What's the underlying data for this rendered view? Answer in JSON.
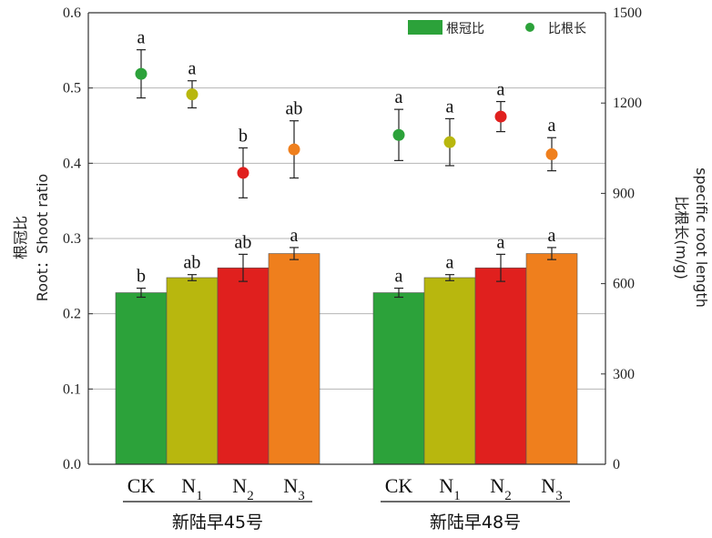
{
  "chart_data": {
    "type": "bar",
    "groups": [
      "新陆早45号",
      "新陆早48号"
    ],
    "categories": [
      {
        "base": "CK",
        "sub": ""
      },
      {
        "base": "N",
        "sub": "1"
      },
      {
        "base": "N",
        "sub": "2"
      },
      {
        "base": "N",
        "sub": "3"
      }
    ],
    "colors": [
      "#2ca23a",
      "#b8b70e",
      "#e0201e",
      "#ef7f1d"
    ],
    "ylabel_left": [
      "根冠比",
      "Root：Shoot ratio"
    ],
    "ylabel_right": [
      "比根长(m/g)",
      "specific root length"
    ],
    "ylim_left": [
      0,
      0.6
    ],
    "yticks_left": [
      "0.0",
      "0.1",
      "0.2",
      "0.3",
      "0.4",
      "0.5",
      "0.6"
    ],
    "ylim_right": [
      0,
      1500
    ],
    "yticks_right": [
      "0",
      "300",
      "600",
      "900",
      "1200",
      "1500"
    ],
    "grid": true,
    "legend_position": "top-right",
    "series": [
      {
        "name": "根冠比",
        "kind": "bar",
        "axis": "left",
        "values": [
          [
            0.228,
            0.248,
            0.261,
            0.28
          ],
          [
            0.228,
            0.248,
            0.261,
            0.28
          ]
        ],
        "errors": [
          [
            0.006,
            0.004,
            0.018,
            0.008
          ],
          [
            0.006,
            0.004,
            0.018,
            0.008
          ]
        ],
        "labels": [
          [
            "b",
            "ab",
            "ab",
            "a"
          ],
          [
            "a",
            "a",
            "a",
            "a"
          ]
        ]
      },
      {
        "name": "比根长",
        "kind": "point",
        "axis": "right",
        "values": [
          [
            1297,
            1229,
            968,
            1046
          ],
          [
            1094,
            1070,
            1155,
            1030
          ]
        ],
        "errors": [
          [
            80,
            45,
            83,
            95
          ],
          [
            85,
            78,
            50,
            55
          ]
        ],
        "labels": [
          [
            "a",
            "a",
            "b",
            "ab"
          ],
          [
            "a",
            "a",
            "a",
            "a"
          ]
        ]
      }
    ]
  }
}
